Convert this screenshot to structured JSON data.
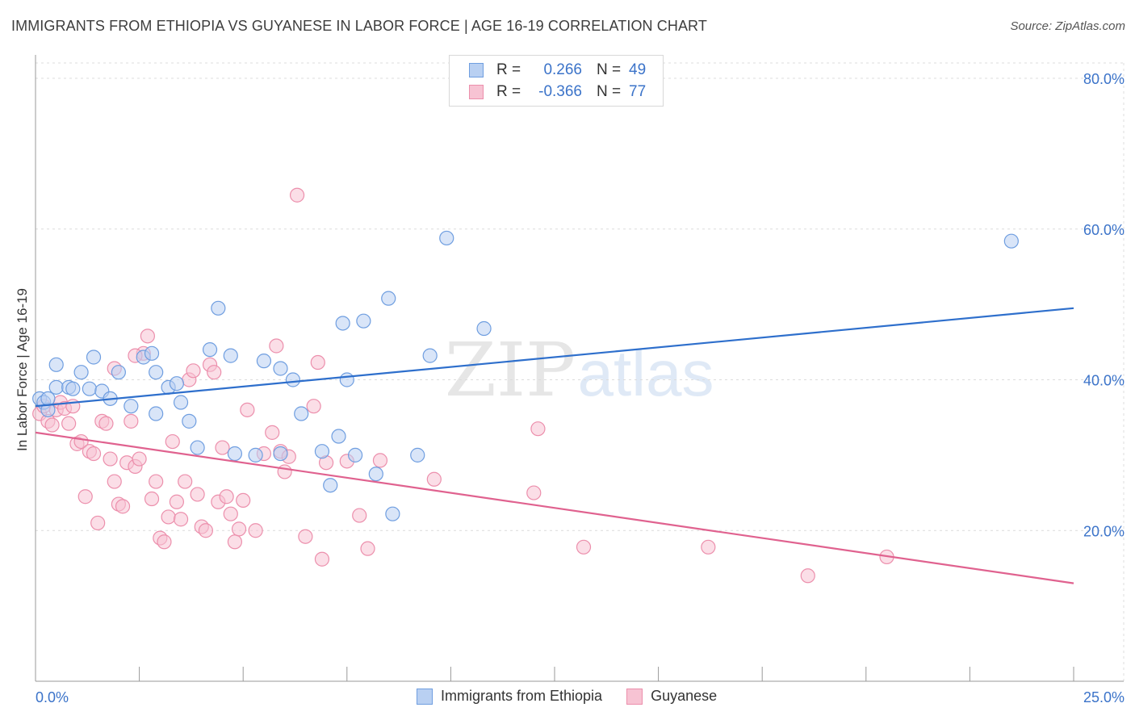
{
  "title": "IMMIGRANTS FROM ETHIOPIA VS GUYANESE IN LABOR FORCE | AGE 16-19 CORRELATION CHART",
  "source": "Source: ZipAtlas.com",
  "watermark": {
    "zip": "ZIP",
    "atlas": "atlas"
  },
  "legend": {
    "rows": [
      {
        "r_label": "R =",
        "r_value": "0.266",
        "n_label": "N =",
        "n_value": "49"
      },
      {
        "r_label": "R =",
        "r_value": "-0.366",
        "n_label": "N =",
        "n_value": "77"
      }
    ]
  },
  "colors": {
    "blue_fill": "#b9d0f2",
    "blue_stroke": "#6f9ee0",
    "blue_line": "#2e6fcc",
    "pink_fill": "#f7c3d3",
    "pink_stroke": "#ec8fac",
    "pink_line": "#e0628f",
    "grid": "#dcdcdc",
    "tick_label": "#3b73c9"
  },
  "chart_data": {
    "type": "scatter",
    "title": "IMMIGRANTS FROM ETHIOPIA VS GUYANESE IN LABOR FORCE | AGE 16-19 CORRELATION CHART",
    "xlabel": "",
    "ylabel": "In Labor Force | Age 16-19",
    "xlim": [
      0,
      25
    ],
    "ylim": [
      0,
      82
    ],
    "x_tick_labels": [
      "0.0%",
      "25.0%"
    ],
    "y_ticks": [
      20,
      40,
      60,
      80
    ],
    "y_tick_labels": [
      "20.0%",
      "40.0%",
      "60.0%",
      "80.0%"
    ],
    "grid": true,
    "legend_position": "top-center",
    "series": [
      {
        "name": "Immigrants from Ethiopia",
        "color": "#6f9ee0",
        "trend": {
          "x": [
            0,
            25
          ],
          "y": [
            36.5,
            49.5
          ]
        },
        "points": [
          [
            0.1,
            37.5
          ],
          [
            0.2,
            37
          ],
          [
            0.3,
            36
          ],
          [
            0.3,
            37.5
          ],
          [
            0.5,
            42
          ],
          [
            0.5,
            39
          ],
          [
            0.8,
            39
          ],
          [
            0.9,
            38.8
          ],
          [
            1.1,
            41
          ],
          [
            1.3,
            38.8
          ],
          [
            1.4,
            43
          ],
          [
            1.6,
            38.5
          ],
          [
            1.8,
            37.5
          ],
          [
            2.0,
            41
          ],
          [
            2.3,
            36.5
          ],
          [
            2.6,
            43
          ],
          [
            2.8,
            43.5
          ],
          [
            2.9,
            41
          ],
          [
            2.9,
            35.5
          ],
          [
            3.2,
            39
          ],
          [
            3.4,
            39.5
          ],
          [
            3.5,
            37
          ],
          [
            3.7,
            34.5
          ],
          [
            3.9,
            31
          ],
          [
            4.2,
            44
          ],
          [
            4.4,
            49.5
          ],
          [
            4.7,
            43.2
          ],
          [
            4.8,
            30.2
          ],
          [
            5.3,
            30
          ],
          [
            5.5,
            42.5
          ],
          [
            5.9,
            30.2
          ],
          [
            5.9,
            41.5
          ],
          [
            6.2,
            40
          ],
          [
            6.4,
            35.5
          ],
          [
            6.9,
            30.5
          ],
          [
            7.1,
            26
          ],
          [
            7.3,
            32.5
          ],
          [
            7.4,
            47.5
          ],
          [
            7.5,
            40
          ],
          [
            7.7,
            30
          ],
          [
            7.9,
            47.8
          ],
          [
            8.2,
            27.5
          ],
          [
            8.5,
            50.8
          ],
          [
            8.6,
            22.2
          ],
          [
            9.2,
            30
          ],
          [
            9.5,
            43.2
          ],
          [
            9.9,
            58.8
          ],
          [
            10.8,
            46.8
          ],
          [
            23.5,
            58.4
          ]
        ]
      },
      {
        "name": "Guyanese",
        "color": "#ec8fac",
        "trend": {
          "x": [
            0,
            25
          ],
          "y": [
            33,
            13
          ]
        },
        "points": [
          [
            0.1,
            35.5
          ],
          [
            0.2,
            36.5
          ],
          [
            0.3,
            34.5
          ],
          [
            0.4,
            34
          ],
          [
            0.5,
            36
          ],
          [
            0.6,
            37
          ],
          [
            0.7,
            36.2
          ],
          [
            0.8,
            34.2
          ],
          [
            0.9,
            36.5
          ],
          [
            1.0,
            31.5
          ],
          [
            1.1,
            31.8
          ],
          [
            1.2,
            24.5
          ],
          [
            1.3,
            30.5
          ],
          [
            1.4,
            30.2
          ],
          [
            1.5,
            21
          ],
          [
            1.6,
            34.5
          ],
          [
            1.7,
            34.2
          ],
          [
            1.8,
            29.5
          ],
          [
            1.9,
            26.5
          ],
          [
            2.0,
            23.5
          ],
          [
            2.1,
            23.2
          ],
          [
            2.2,
            29
          ],
          [
            2.3,
            34.5
          ],
          [
            2.4,
            28.5
          ],
          [
            2.5,
            29.5
          ],
          [
            2.6,
            43.5
          ],
          [
            2.7,
            45.8
          ],
          [
            2.8,
            24.2
          ],
          [
            2.9,
            26.5
          ],
          [
            3.0,
            19
          ],
          [
            3.1,
            18.5
          ],
          [
            3.2,
            21.8
          ],
          [
            3.3,
            31.8
          ],
          [
            3.4,
            23.8
          ],
          [
            3.5,
            21.5
          ],
          [
            3.6,
            26.5
          ],
          [
            3.7,
            40
          ],
          [
            3.8,
            41.2
          ],
          [
            3.9,
            24.8
          ],
          [
            4.0,
            20.5
          ],
          [
            4.1,
            20
          ],
          [
            4.2,
            42
          ],
          [
            4.3,
            41
          ],
          [
            4.4,
            23.8
          ],
          [
            4.5,
            31
          ],
          [
            4.6,
            24.5
          ],
          [
            4.7,
            22.2
          ],
          [
            4.8,
            18.5
          ],
          [
            4.9,
            20.2
          ],
          [
            5.0,
            24
          ],
          [
            5.1,
            36
          ],
          [
            5.3,
            20
          ],
          [
            5.5,
            30.2
          ],
          [
            5.7,
            33
          ],
          [
            5.8,
            44.5
          ],
          [
            5.9,
            30.5
          ],
          [
            6.0,
            27.8
          ],
          [
            6.1,
            29.8
          ],
          [
            6.3,
            64.5
          ],
          [
            6.5,
            19.2
          ],
          [
            6.7,
            36.5
          ],
          [
            6.8,
            42.3
          ],
          [
            6.9,
            16.2
          ],
          [
            7.0,
            29
          ],
          [
            7.5,
            29.2
          ],
          [
            7.8,
            22
          ],
          [
            8.0,
            17.6
          ],
          [
            8.3,
            29.3
          ],
          [
            9.6,
            26.8
          ],
          [
            12.0,
            25
          ],
          [
            12.1,
            33.5
          ],
          [
            13.2,
            17.8
          ],
          [
            16.2,
            17.8
          ],
          [
            18.6,
            14
          ],
          [
            20.5,
            16.5
          ],
          [
            2.4,
            43.2
          ],
          [
            1.9,
            41.5
          ]
        ]
      }
    ]
  },
  "bottom_legend": {
    "series1": "Immigrants from Ethiopia",
    "series2": "Guyanese"
  }
}
